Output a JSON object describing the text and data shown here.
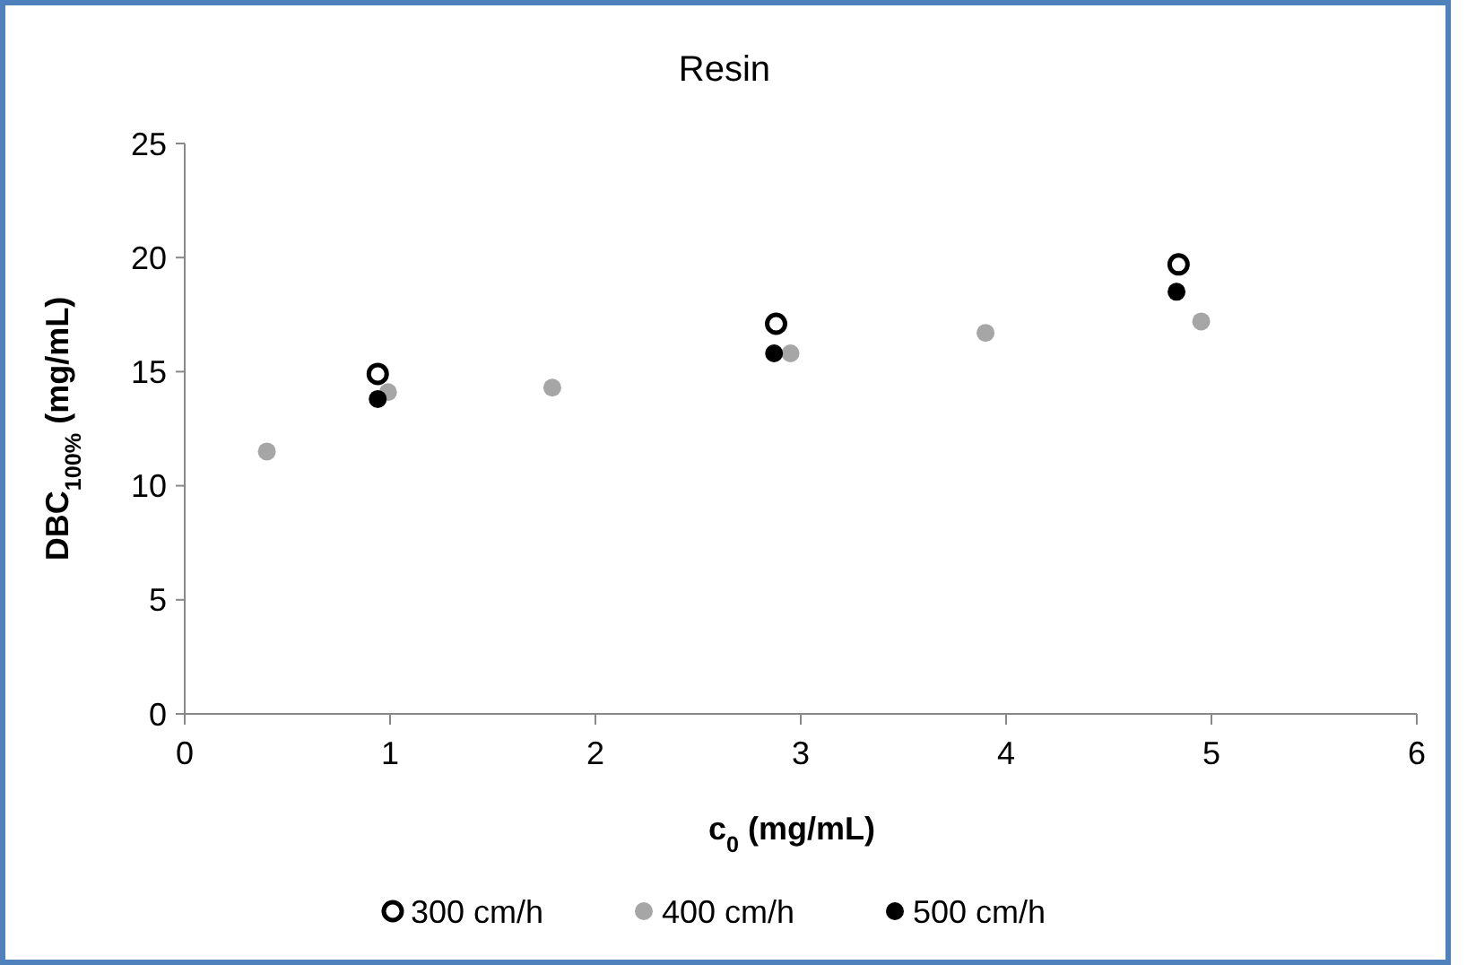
{
  "chart_data": {
    "type": "scatter",
    "title": "Resin",
    "xlabel": "c$_{0}$ (mg/mL)",
    "ylabel": "DBC$_{100%}$ (mg/mL)",
    "xlim": [
      0,
      6
    ],
    "xticks": [
      0,
      1,
      2,
      3,
      4,
      5,
      6
    ],
    "ylim": [
      0,
      25
    ],
    "yticks": [
      0,
      5,
      10,
      15,
      20,
      25
    ],
    "grid": false,
    "legend": "bottom",
    "marker": "circle",
    "series": [
      {
        "name": "300 cm/h",
        "color": "#000000",
        "x": [
          0.94,
          2.88,
          4.84
        ],
        "values": [
          14.9,
          17.1,
          19.7
        ]
      },
      {
        "name": "400 cm/h",
        "color": "#a6a6a6",
        "x": [
          0.4,
          0.99,
          1.79,
          2.95,
          3.9,
          4.95
        ],
        "values": [
          11.5,
          14.1,
          14.3,
          15.8,
          16.7,
          17.2
        ]
      },
      {
        "name": "500 cm/h",
        "color": "#000000",
        "x": [
          0.94,
          2.87,
          4.83
        ],
        "values": [
          13.8,
          15.8,
          18.5
        ]
      }
    ]
  }
}
